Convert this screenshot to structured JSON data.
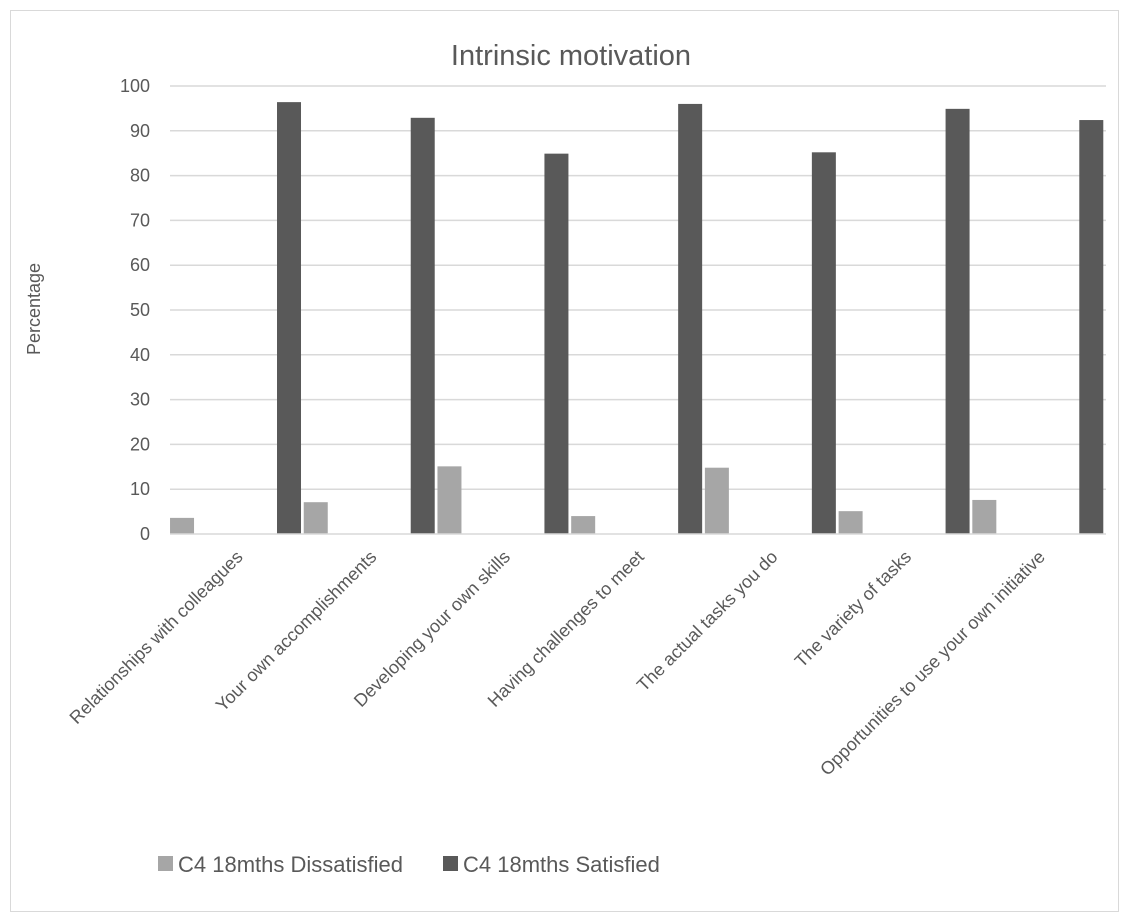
{
  "chart_data": {
    "type": "bar",
    "title": "Intrinsic motivation",
    "xlabel": "",
    "ylabel": "Percentage",
    "ylim": [
      0,
      100
    ],
    "yticks": [
      0,
      10,
      20,
      30,
      40,
      50,
      60,
      70,
      80,
      90,
      100
    ],
    "grid": true,
    "legend_position": "bottom-left",
    "categories": [
      "Relationships with colleagues",
      "Your own accomplishments",
      "Developing your own skills",
      "Having challenges to meet",
      "The actual tasks you do",
      "The variety of tasks",
      "Opportunities to use your own initiative"
    ],
    "series": [
      {
        "name": "C4 18mths Dissatisfied",
        "color": "#a6a6a6",
        "values": [
          3.6,
          7.1,
          15.1,
          4,
          14.8,
          5.1,
          7.6
        ]
      },
      {
        "name": "C4 18mths Satisfied",
        "color": "#595959",
        "values": [
          96.4,
          92.9,
          84.9,
          96,
          85.2,
          94.9,
          92.4
        ]
      }
    ]
  }
}
